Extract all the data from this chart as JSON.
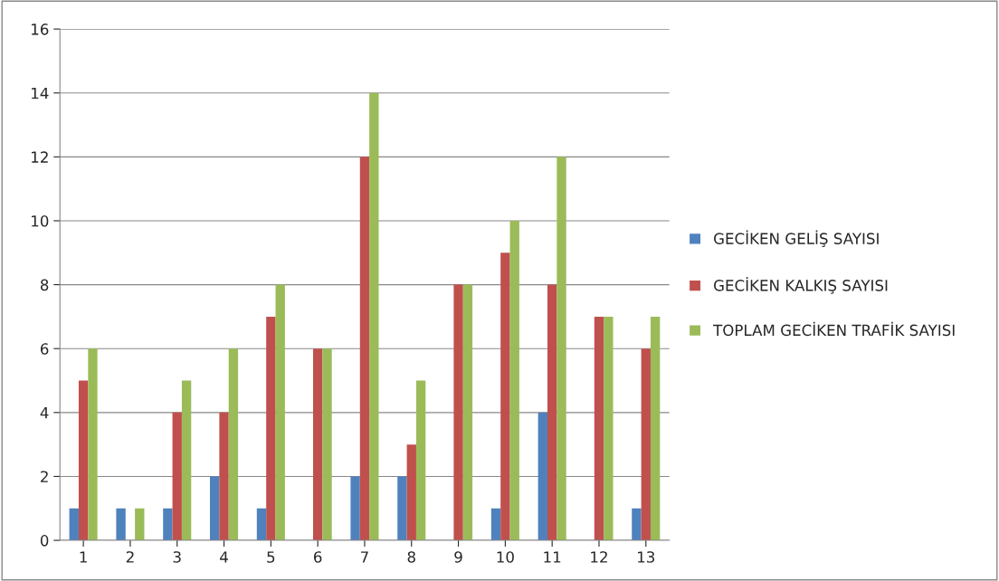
{
  "chart_data": {
    "type": "bar",
    "categories": [
      "1",
      "2",
      "3",
      "4",
      "5",
      "6",
      "7",
      "8",
      "9",
      "10",
      "11",
      "12",
      "13"
    ],
    "series": [
      {
        "name": "GECİKEN GELİŞ SAYISI",
        "color": "#4f81bd",
        "values": [
          1,
          1,
          1,
          2,
          1,
          null,
          2,
          2,
          null,
          1,
          4,
          null,
          1
        ]
      },
      {
        "name": "GECİKEN KALKIŞ SAYISI",
        "color": "#c0504d",
        "values": [
          5,
          null,
          4,
          4,
          7,
          6,
          12,
          3,
          8,
          9,
          8,
          7,
          6
        ]
      },
      {
        "name": "TOPLAM GECİKEN TRAFİK SAYISI",
        "color": "#9bbb59",
        "values": [
          6,
          1,
          5,
          6,
          8,
          6,
          14,
          5,
          8,
          10,
          12,
          7,
          7
        ]
      }
    ],
    "ylim": [
      0,
      16
    ],
    "yticks": [
      0,
      2,
      4,
      6,
      8,
      10,
      12,
      14,
      16
    ],
    "grid": "y",
    "legend": "right"
  }
}
